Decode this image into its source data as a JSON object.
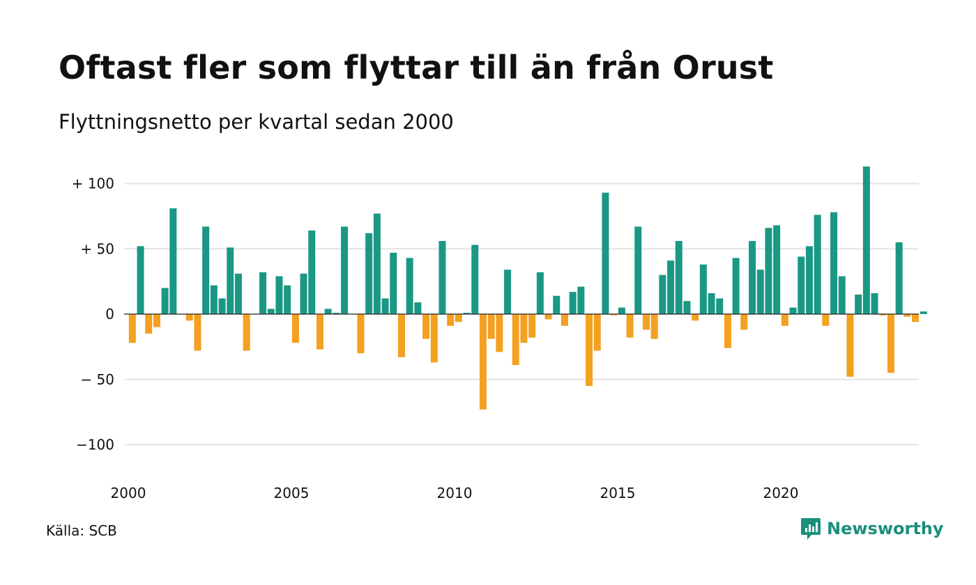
{
  "title": "Oftast fler som flyttar till än från Orust",
  "subtitle": "Flyttningsnetto per kvartal sedan 2000",
  "source": "Källa: SCB",
  "brand": {
    "name": "Newsworthy",
    "icon": "newsworthy-logo-icon"
  },
  "colors": {
    "positive": "#1a9884",
    "negative": "#f4a020",
    "grid": "#e3e3e3",
    "zero_line": "#222222"
  },
  "chart_data": {
    "type": "bar",
    "x_start": 2000,
    "periods_per_year": 4,
    "ylim": [
      -115,
      120
    ],
    "y_ticks": [
      100,
      50,
      0,
      -50,
      -100
    ],
    "y_tick_labels": [
      "+ 100",
      "+  50",
      "0",
      "− 50",
      "−100"
    ],
    "x_ticks": [
      2000,
      2005,
      2010,
      2015,
      2020
    ],
    "x_tick_labels": [
      "2000",
      "2005",
      "2010",
      "2015",
      "2020"
    ],
    "grid": true,
    "legend": "none",
    "values": [
      -22,
      52,
      -15,
      -10,
      20,
      81,
      0,
      -5,
      -28,
      67,
      22,
      12,
      51,
      31,
      -28,
      0,
      32,
      4,
      29,
      22,
      -22,
      31,
      64,
      -27,
      4,
      1,
      67,
      0,
      -30,
      62,
      77,
      12,
      47,
      -33,
      43,
      9,
      -19,
      -37,
      56,
      -9,
      -6,
      1,
      53,
      -73,
      -19,
      -29,
      34,
      -39,
      -22,
      -18,
      32,
      -4,
      14,
      -9,
      17,
      21,
      -55,
      -28,
      93,
      -1,
      5,
      -18,
      67,
      -12,
      -19,
      30,
      41,
      56,
      10,
      -5,
      38,
      16,
      12,
      -26,
      43,
      -12,
      56,
      34,
      66,
      68,
      -9,
      5,
      44,
      52,
      76,
      -9,
      78,
      29,
      -48,
      15,
      113,
      16,
      -1,
      -45,
      55,
      -2,
      -6,
      2
    ]
  }
}
